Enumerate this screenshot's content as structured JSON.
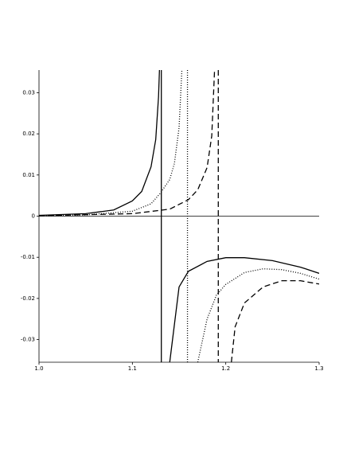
{
  "chart_data": {
    "type": "line",
    "xlim": [
      1.0,
      1.3
    ],
    "ylim": [
      -0.0355,
      0.0355
    ],
    "xticks": [
      {
        "value": 1.0,
        "label": "1.0"
      },
      1.1,
      1.2,
      1.3
    ],
    "yticks": [
      -0.03,
      -0.02,
      -0.01,
      0,
      0.01,
      0.02,
      0.03
    ],
    "series": [
      {
        "color": "#000000",
        "dash": "solid",
        "asymptote": 1.131,
        "x": [
          1.0,
          1.05,
          1.08,
          1.1,
          1.11,
          1.12,
          1.125,
          1.128,
          1.129,
          null,
          1.14,
          1.15,
          1.16,
          1.18,
          1.2,
          1.22,
          1.25,
          1.28,
          1.3
        ],
        "values": [
          0.0002,
          0.0006,
          0.0015,
          0.0037,
          0.006,
          0.012,
          0.0186,
          0.029,
          0.0355,
          null,
          -0.0355,
          -0.0172,
          -0.0134,
          -0.011,
          -0.0101,
          -0.0101,
          -0.0108,
          -0.0124,
          -0.0139
        ]
      },
      {
        "color": "#000000",
        "dash": "dotted",
        "asymptote": 1.159,
        "x": [
          1.0,
          1.05,
          1.1,
          1.12,
          1.13,
          1.14,
          1.145,
          1.15,
          1.153,
          null,
          1.17,
          1.18,
          1.19,
          1.2,
          1.22,
          1.24,
          1.26,
          1.28,
          1.3
        ],
        "values": [
          0.0001,
          0.0003,
          0.0012,
          0.003,
          0.0056,
          0.0089,
          0.0128,
          0.0215,
          0.0355,
          null,
          -0.0355,
          -0.025,
          -0.0192,
          -0.0166,
          -0.0137,
          -0.0128,
          -0.013,
          -0.0139,
          -0.0153
        ]
      },
      {
        "color": "#000000",
        "dash": "dashed",
        "asymptote": 1.192,
        "x": [
          1.0,
          1.1,
          1.14,
          1.16,
          1.17,
          1.18,
          1.185,
          1.188,
          null,
          1.206,
          1.21,
          1.22,
          1.24,
          1.26,
          1.28,
          1.3
        ],
        "values": [
          0.0001,
          0.0006,
          0.0017,
          0.004,
          0.0064,
          0.0118,
          0.0195,
          0.0355,
          null,
          -0.0355,
          -0.0269,
          -0.0211,
          -0.0172,
          -0.0157,
          -0.0157,
          -0.0165
        ]
      }
    ]
  }
}
